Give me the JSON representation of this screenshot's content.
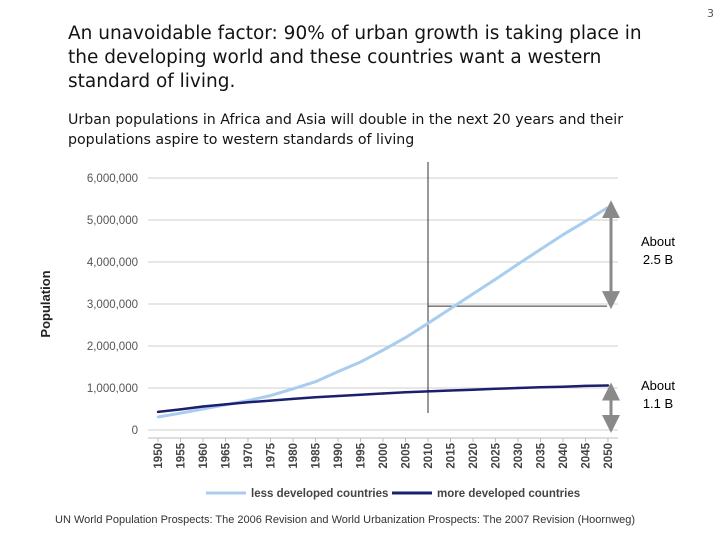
{
  "slide": {
    "number": "3",
    "title": "An unavoidable factor: 90% of urban growth is taking place in the developing world and these countries want a western standard of living.",
    "subtitle": "Urban populations in Africa and Asia will double in the next 20 years and their populations aspire to western standards of living",
    "source": "UN World Population Prospects: The 2006 Revision and World Urbanization Prospects: The 2007 Revision (Hoornweg)"
  },
  "chart_data": {
    "type": "line",
    "title": "",
    "xlabel": "",
    "ylabel": "Population",
    "x": [
      1950,
      1955,
      1960,
      1965,
      1970,
      1975,
      1980,
      1985,
      1990,
      1995,
      2000,
      2005,
      2010,
      2015,
      2020,
      2025,
      2030,
      2035,
      2040,
      2045,
      2050
    ],
    "x_tick_labels": [
      "1950",
      "1955",
      "1960",
      "1965",
      "1970",
      "1975",
      "1980",
      "1985",
      "1990",
      "1995",
      "2000",
      "2005",
      "2010",
      "2015",
      "2020",
      "2025",
      "2030",
      "2035",
      "2040",
      "2045",
      "2050"
    ],
    "y_tick_labels": [
      "0",
      "1,000,000",
      "2,000,000",
      "3,000,000",
      "4,000,000",
      "5,000,000",
      "6,000,000"
    ],
    "ylim": [
      0,
      6000000
    ],
    "grid": true,
    "legend_position": "bottom",
    "series": [
      {
        "name": "less developed countries",
        "color": "#a9cdee",
        "values": [
          310000,
          400000,
          500000,
          600000,
          700000,
          820000,
          980000,
          1150000,
          1390000,
          1620000,
          1900000,
          2200000,
          2540000,
          2890000,
          3240000,
          3590000,
          3950000,
          4300000,
          4650000,
          4970000,
          5300000
        ]
      },
      {
        "name": "more developed countries",
        "color": "#1b1f6e",
        "values": [
          430000,
          490000,
          560000,
          610000,
          660000,
          700000,
          740000,
          780000,
          810000,
          840000,
          870000,
          900000,
          920000,
          940000,
          960000,
          980000,
          1000000,
          1020000,
          1030000,
          1050000,
          1060000
        ]
      }
    ],
    "annotations": [
      {
        "label_line1": "About",
        "label_line2": "2.5 B",
        "y_from": 2950000,
        "y_to": 5400000
      },
      {
        "label_line1": "About",
        "label_line2": "1.1 B",
        "y_from": 0,
        "y_to": 1060000
      }
    ],
    "marker_year": 2010,
    "marker_horizontal_from_year": 2010,
    "marker_horizontal_value": 2950000
  }
}
